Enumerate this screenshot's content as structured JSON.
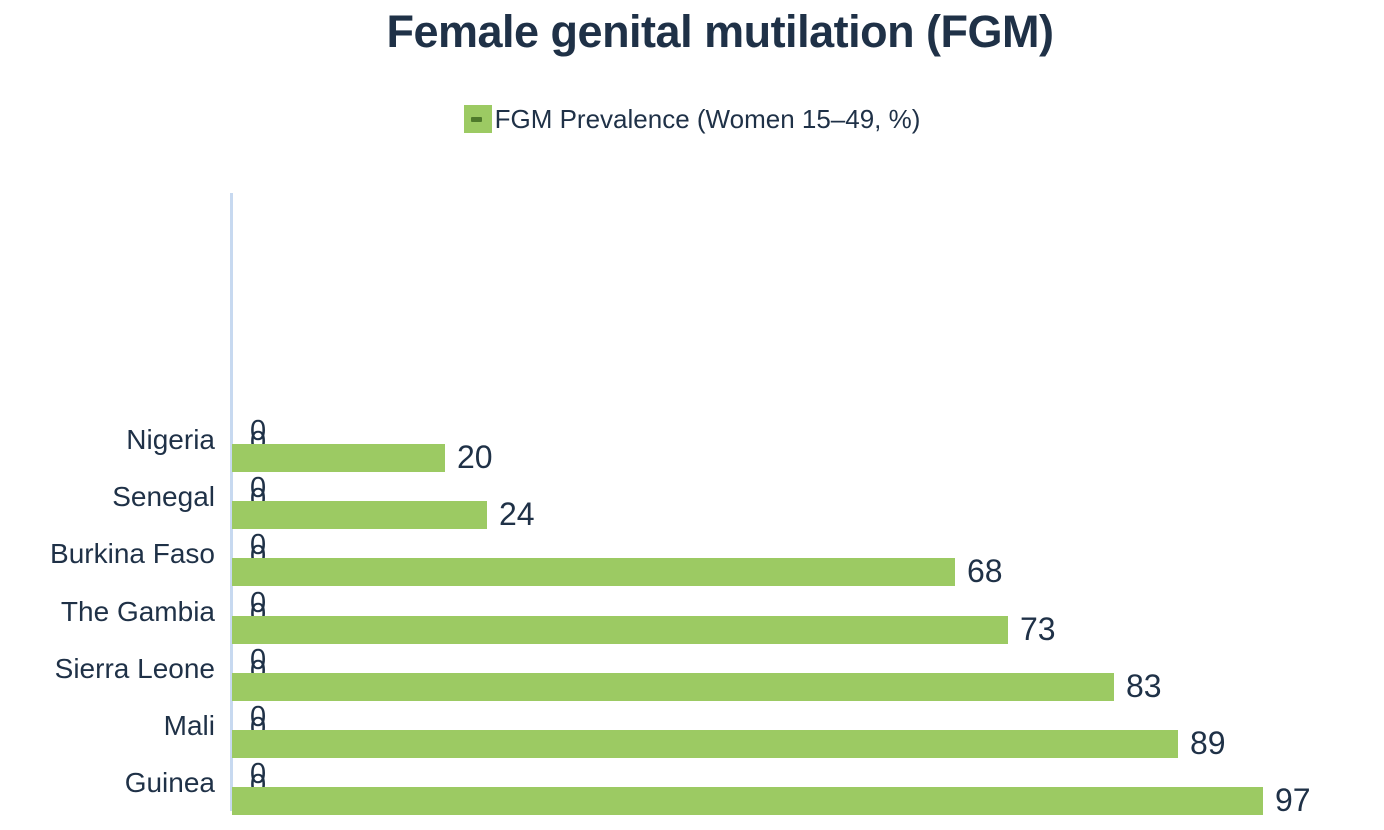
{
  "title": "Female genital mutilation (FGM)",
  "legend": {
    "label": "FGM Prevalence (Women 15–49, %)",
    "swatch_color": "#9cca63",
    "swatch_dash_color": "#4e7a2b"
  },
  "colors": {
    "bar": "#9cca63",
    "text": "#1f3147",
    "axis_line": "#c7d9f0",
    "background": "#ffffff"
  },
  "chart_data": {
    "type": "bar",
    "orientation": "horizontal",
    "title": "Female genital mutilation (FGM)",
    "series_name": "FGM Prevalence (Women 15–49, %)",
    "categories": [
      "Nigeria",
      "Senegal",
      "Burkina Faso",
      "The Gambia",
      "Sierra Leone",
      "Mali",
      "Guinea"
    ],
    "values": [
      20,
      24,
      68,
      73,
      83,
      89,
      97
    ],
    "value_labels": [
      "20",
      "24",
      "68",
      "73",
      "83",
      "89",
      "97"
    ],
    "extra_zero_series": {
      "count": 2,
      "label": "0",
      "note": "two overlapping zero data labels shown at axis for each category"
    },
    "xlim": [
      0,
      100
    ],
    "grid": false,
    "legend_position": "top-center",
    "xlabel": "",
    "ylabel": ""
  }
}
